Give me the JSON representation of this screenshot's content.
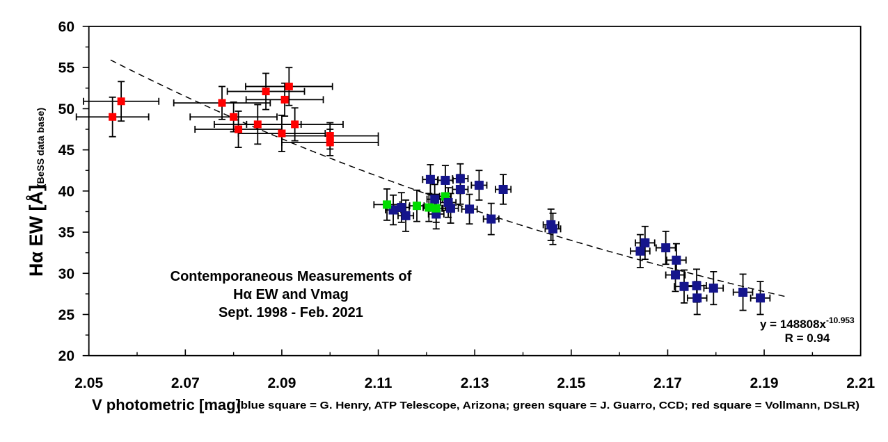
{
  "figure": {
    "background": "#FFFFFF",
    "annotation": {
      "lines": [
        "Contemporaneous Measurements of",
        "Hα EW and Vmag",
        "Sept. 1998 - Feb. 2021"
      ]
    },
    "equation": {
      "prefix": "y = 148808x",
      "exponent": "-10.953",
      "r_label": "R = 0.94"
    }
  },
  "chart_data": {
    "type": "scatter",
    "title": "",
    "xlabel": "V photometric [mag]",
    "xlabel_note": "(blue square = G. Henry, ATP Telescope, Arizona; green square = J. Guarro, CCD; red square = Vollmann, DSLR)",
    "ylabel": "Hα EW [Å]",
    "ylabel_note": "(BeSS data base)",
    "xlim": [
      2.05,
      2.21
    ],
    "ylim": [
      20,
      60
    ],
    "x_major_ticks": [
      2.05,
      2.07,
      2.09,
      2.11,
      2.13,
      2.15,
      2.17,
      2.19,
      2.21
    ],
    "x_minor_ticks": [
      2.06,
      2.08,
      2.1,
      2.12,
      2.14,
      2.16,
      2.18,
      2.2
    ],
    "y_major_ticks": [
      20,
      25,
      30,
      35,
      40,
      45,
      50,
      55,
      60
    ],
    "y_minor_ticks": [
      22.5,
      27.5,
      32.5,
      37.5,
      42.5,
      47.5,
      52.5,
      57.5
    ],
    "grid": false,
    "legend_position": "in x-axis note",
    "trendline": {
      "style": "dashed",
      "model": "power",
      "a": 148808,
      "b": -10.953,
      "r": 0.94,
      "x_start": 2.0545,
      "x_end": 2.196
    },
    "series": [
      {
        "name": "G. Henry, ATP Telescope, Arizona",
        "marker": "square",
        "color": "#15158C",
        "marker_size": 13,
        "points": [
          [
            2.1131,
            37.7,
            0.0016,
            1.8
          ],
          [
            2.1148,
            38.0,
            0.0016,
            1.8
          ],
          [
            2.1157,
            37.0,
            0.0016,
            1.9
          ],
          [
            2.1208,
            41.4,
            0.0016,
            1.8
          ],
          [
            2.1239,
            41.3,
            0.0016,
            1.8
          ],
          [
            2.127,
            41.5,
            0.0016,
            1.8
          ],
          [
            2.127,
            40.2,
            0.0016,
            1.8
          ],
          [
            2.1309,
            40.7,
            0.0016,
            1.8
          ],
          [
            2.1359,
            40.2,
            0.0016,
            1.8
          ],
          [
            2.1217,
            39.0,
            0.0016,
            1.8
          ],
          [
            2.122,
            37.2,
            0.0016,
            1.8
          ],
          [
            2.1245,
            38.6,
            0.0016,
            1.8
          ],
          [
            2.125,
            37.9,
            0.0016,
            1.8
          ],
          [
            2.1289,
            37.8,
            0.0016,
            1.8
          ],
          [
            2.1334,
            36.6,
            0.0016,
            1.9
          ],
          [
            2.1458,
            35.9,
            0.0016,
            1.9
          ],
          [
            2.1462,
            35.4,
            0.0016,
            1.9
          ],
          [
            2.1653,
            33.7,
            0.002,
            2.0
          ],
          [
            2.1643,
            32.7,
            0.002,
            2.0
          ],
          [
            2.1696,
            33.1,
            0.002,
            2.0
          ],
          [
            2.1718,
            31.6,
            0.002,
            2.0
          ],
          [
            2.1716,
            29.8,
            0.002,
            2.0
          ],
          [
            2.1734,
            28.4,
            0.002,
            2.0
          ],
          [
            2.176,
            28.5,
            0.002,
            2.0
          ],
          [
            2.1761,
            27.0,
            0.002,
            2.0
          ],
          [
            2.1795,
            28.2,
            0.002,
            2.0
          ],
          [
            2.1856,
            27.7,
            0.002,
            2.2
          ],
          [
            2.1892,
            27.0,
            0.002,
            2.0
          ]
        ]
      },
      {
        "name": "J. Guarro, CCD",
        "marker": "square",
        "color": "#00DD00",
        "marker_size": 12,
        "points": [
          [
            2.1118,
            38.35,
            0.0027,
            1.9,
            0
          ],
          [
            2.118,
            38.2,
            0.0015,
            1.9,
            0
          ],
          [
            2.1205,
            38.0,
            0.0012,
            1.7,
            0
          ],
          [
            2.122,
            37.9,
            0.0012,
            1.7,
            0
          ],
          [
            2.1239,
            39.35,
            0.0012,
            1.7,
            1
          ]
        ]
      },
      {
        "name": "Vollmann, DSLR",
        "marker": "square",
        "color": "#FF0000",
        "marker_size": 11,
        "points": [
          [
            2.0549,
            49.0,
            0.0075,
            2.4
          ],
          [
            2.0567,
            50.9,
            0.0078,
            2.4
          ],
          [
            2.0776,
            50.7,
            0.01,
            2.0
          ],
          [
            2.08,
            49.0,
            0.009,
            1.8
          ],
          [
            2.081,
            47.5,
            0.009,
            2.2
          ],
          [
            2.085,
            48.1,
            0.009,
            2.4
          ],
          [
            2.0867,
            52.1,
            0.008,
            2.2
          ],
          [
            2.09,
            47.0,
            0.009,
            2.2
          ],
          [
            2.0906,
            51.1,
            0.008,
            2.0
          ],
          [
            2.0915,
            52.7,
            0.009,
            2.3
          ],
          [
            2.0927,
            48.1,
            0.01,
            2.0
          ],
          [
            2.1,
            46.7,
            0.01,
            1.6
          ],
          [
            2.1,
            45.9,
            0.01,
            1.6
          ]
        ]
      }
    ]
  }
}
